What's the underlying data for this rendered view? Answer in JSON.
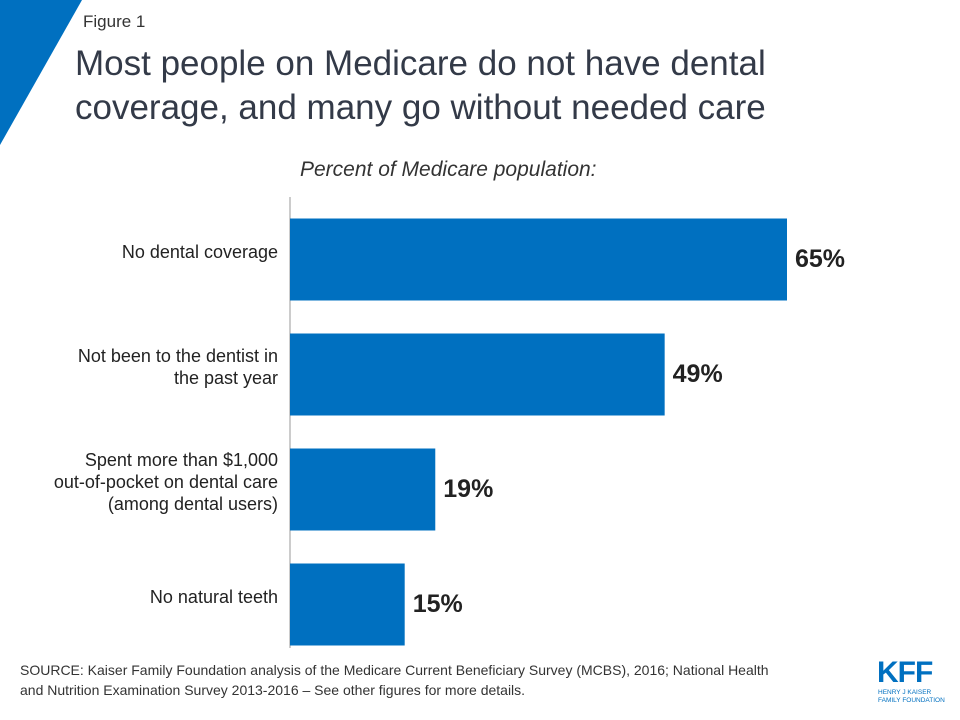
{
  "chart_data": {
    "type": "bar",
    "orientation": "horizontal",
    "figure_label": "Figure 1",
    "title": "Most people on Medicare do not have dental\ncoverage, and many go without needed care",
    "subtitle": "Percent of Medicare population:",
    "categories": [
      "No dental coverage",
      "Not been to the dentist in\nthe past year",
      "Spent more than $1,000\nout-of-pocket on dental care\n(among dental users)",
      "No natural teeth"
    ],
    "values": [
      65,
      49,
      19,
      15
    ],
    "value_labels": [
      "65%",
      "49%",
      "19%",
      "15%"
    ],
    "color": "#0070c0",
    "source": "SOURCE: Kaiser Family Foundation analysis of the Medicare Current Beneficiary Survey (MCBS), 2016; National Health\nand Nutrition Examination Survey 2013-2016 – See other figures for more details.",
    "logo_text": "KFF",
    "logo_subtext": "HENRY J KAISER\nFAMILY FOUNDATION"
  }
}
